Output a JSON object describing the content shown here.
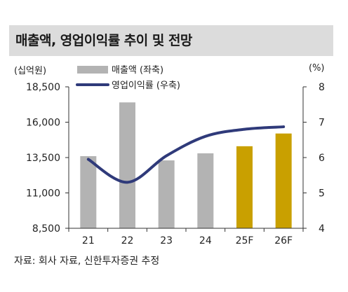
{
  "title": "매출액, 영업이익률 추이 및 전망",
  "source": "자료: 회사 자료, 신한투자증권 추정",
  "colors": {
    "bar_actual": "#b3b3b3",
    "bar_forecast": "#c9a000",
    "line": "#2f3a7a",
    "title_bg": "#dcdcdc"
  },
  "chart_data": {
    "type": "bar+line",
    "categories": [
      "21",
      "22",
      "23",
      "24",
      "25F",
      "26F"
    ],
    "forecast_categories": [
      "25F",
      "26F"
    ],
    "y_left": {
      "unit": "(십억원)",
      "ticks": [
        "18,500",
        "16,000",
        "13,500",
        "11,000",
        "8,500"
      ],
      "ylim": [
        8500,
        18500
      ]
    },
    "y_right": {
      "unit": "(%)",
      "ticks": [
        "8",
        "7",
        "6",
        "5",
        "4"
      ],
      "ylim": [
        4,
        8
      ]
    },
    "series": [
      {
        "name": "매출액 (좌축)",
        "type": "bar",
        "axis": "left",
        "values": [
          13600,
          17400,
          13300,
          13800,
          14300,
          15200
        ]
      },
      {
        "name": "영업이익률 (우축)",
        "type": "line",
        "axis": "right",
        "values": [
          5.95,
          5.3,
          6.05,
          6.6,
          6.8,
          6.87
        ]
      }
    ],
    "legend": [
      "매출액 (좌축)",
      "영업이익률 (우축)"
    ],
    "legend_position": "top-left",
    "grid": false
  }
}
